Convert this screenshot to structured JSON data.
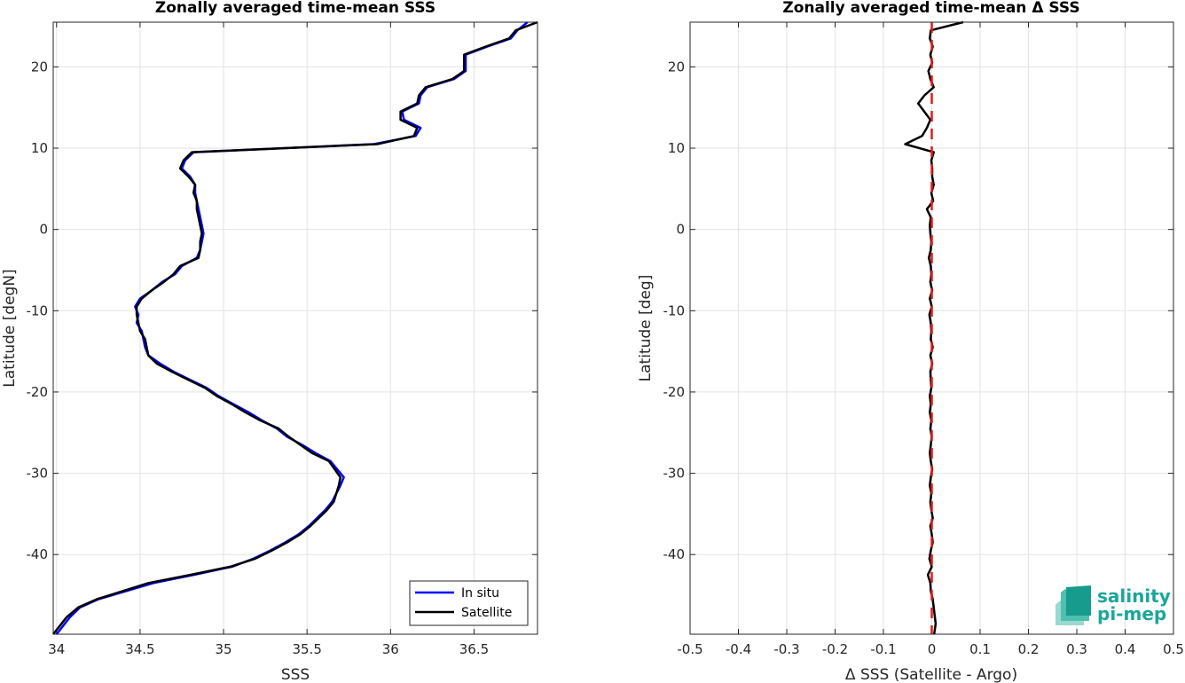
{
  "chart_data": [
    {
      "type": "line",
      "title": "Zonally averaged time-mean SSS",
      "xlabel": "SSS",
      "ylabel": "Latitude [degN]",
      "xlim": [
        33.98,
        36.88
      ],
      "ylim": [
        -49.8,
        25.5
      ],
      "xticks": [
        "34",
        "34.5",
        "35",
        "35.5",
        "36",
        "36.5"
      ],
      "xtick_values": [
        34,
        34.5,
        35,
        35.5,
        36,
        36.5
      ],
      "yticks": [
        "20",
        "10",
        "0",
        "-10",
        "-20",
        "-30",
        "-40"
      ],
      "ytick_values": [
        20,
        10,
        0,
        -10,
        -20,
        -30,
        -40
      ],
      "grid": true,
      "legend": {
        "position": "bottom-right",
        "entries": [
          "In situ",
          "Satellite"
        ]
      },
      "series": [
        {
          "name": "In situ",
          "color": "#0000ff",
          "points": [
            [
              34.0,
              -49.8
            ],
            [
              34.08,
              -47.7
            ],
            [
              34.14,
              -46.5
            ],
            [
              34.25,
              -45.5
            ],
            [
              34.58,
              -43.5
            ],
            [
              34.82,
              -42.5
            ],
            [
              35.05,
              -41.5
            ],
            [
              35.18,
              -40.5
            ],
            [
              35.28,
              -39.5
            ],
            [
              35.37,
              -38.5
            ],
            [
              35.45,
              -37.5
            ],
            [
              35.51,
              -36.5
            ],
            [
              35.56,
              -35.5
            ],
            [
              35.61,
              -34.5
            ],
            [
              35.65,
              -33.5
            ],
            [
              35.7,
              -31.5
            ],
            [
              35.72,
              -30.5
            ],
            [
              35.64,
              -28.5
            ],
            [
              35.55,
              -27.5
            ],
            [
              35.47,
              -26.5
            ],
            [
              35.38,
              -25.5
            ],
            [
              35.32,
              -24.5
            ],
            [
              35.23,
              -23.5
            ],
            [
              35.15,
              -22.5
            ],
            [
              35.06,
              -21.5
            ],
            [
              34.97,
              -20.5
            ],
            [
              34.9,
              -19.5
            ],
            [
              34.8,
              -18.5
            ],
            [
              34.7,
              -17.5
            ],
            [
              34.62,
              -16.5
            ],
            [
              34.55,
              -15.5
            ],
            [
              34.53,
              -14.5
            ],
            [
              34.52,
              -13.5
            ],
            [
              34.51,
              -12.5
            ],
            [
              34.48,
              -11.5
            ],
            [
              34.49,
              -10.5
            ],
            [
              34.47,
              -9.5
            ],
            [
              34.5,
              -8.5
            ],
            [
              34.57,
              -7.5
            ],
            [
              34.63,
              -6.5
            ],
            [
              34.71,
              -5.5
            ],
            [
              34.75,
              -4.5
            ],
            [
              34.84,
              -3.5
            ],
            [
              34.86,
              -2.5
            ],
            [
              34.87,
              -1.5
            ],
            [
              34.88,
              -0.5
            ],
            [
              34.87,
              0.5
            ],
            [
              34.86,
              1.5
            ],
            [
              34.85,
              2.5
            ],
            [
              34.84,
              3.5
            ],
            [
              34.83,
              4.5
            ],
            [
              34.83,
              5.5
            ],
            [
              34.8,
              6.5
            ],
            [
              34.75,
              7.5
            ],
            [
              34.77,
              8.5
            ],
            [
              34.82,
              9.5
            ],
            [
              35.9,
              10.5
            ],
            [
              36.15,
              11.5
            ],
            [
              36.18,
              12.5
            ],
            [
              36.08,
              13.5
            ],
            [
              36.07,
              14.5
            ],
            [
              36.17,
              15.5
            ],
            [
              36.18,
              16.5
            ],
            [
              36.22,
              17.5
            ],
            [
              36.38,
              18.5
            ],
            [
              36.45,
              19.5
            ],
            [
              36.45,
              21.5
            ],
            [
              36.58,
              22.5
            ],
            [
              36.72,
              23.5
            ],
            [
              36.76,
              24.5
            ],
            [
              36.82,
              25.5
            ]
          ]
        },
        {
          "name": "Satellite",
          "color": "#000000",
          "points": [
            [
              33.98,
              -49.8
            ],
            [
              34.06,
              -47.7
            ],
            [
              34.13,
              -46.5
            ],
            [
              34.24,
              -45.5
            ],
            [
              34.55,
              -43.5
            ],
            [
              34.8,
              -42.5
            ],
            [
              35.04,
              -41.5
            ],
            [
              35.19,
              -40.5
            ],
            [
              35.29,
              -39.5
            ],
            [
              35.38,
              -38.5
            ],
            [
              35.46,
              -37.5
            ],
            [
              35.52,
              -36.5
            ],
            [
              35.57,
              -35.5
            ],
            [
              35.62,
              -34.5
            ],
            [
              35.66,
              -33.5
            ],
            [
              35.69,
              -31.5
            ],
            [
              35.7,
              -30.5
            ],
            [
              35.63,
              -28.5
            ],
            [
              35.53,
              -27.5
            ],
            [
              35.46,
              -26.5
            ],
            [
              35.39,
              -25.5
            ],
            [
              35.33,
              -24.5
            ],
            [
              35.22,
              -23.5
            ],
            [
              35.13,
              -22.5
            ],
            [
              35.05,
              -21.5
            ],
            [
              34.96,
              -20.5
            ],
            [
              34.89,
              -19.5
            ],
            [
              34.79,
              -18.5
            ],
            [
              34.69,
              -17.5
            ],
            [
              34.6,
              -16.5
            ],
            [
              34.55,
              -15.5
            ],
            [
              34.54,
              -14.5
            ],
            [
              34.53,
              -13.5
            ],
            [
              34.5,
              -12.5
            ],
            [
              34.49,
              -11.5
            ],
            [
              34.48,
              -10.5
            ],
            [
              34.48,
              -9.5
            ],
            [
              34.51,
              -8.5
            ],
            [
              34.57,
              -7.5
            ],
            [
              34.64,
              -6.5
            ],
            [
              34.7,
              -5.5
            ],
            [
              34.74,
              -4.5
            ],
            [
              34.85,
              -3.5
            ],
            [
              34.86,
              -2.5
            ],
            [
              34.86,
              -1.5
            ],
            [
              34.87,
              -0.5
            ],
            [
              34.86,
              0.5
            ],
            [
              34.85,
              1.5
            ],
            [
              34.84,
              2.5
            ],
            [
              34.84,
              3.5
            ],
            [
              34.82,
              4.5
            ],
            [
              34.83,
              5.5
            ],
            [
              34.79,
              6.5
            ],
            [
              34.74,
              7.5
            ],
            [
              34.76,
              8.5
            ],
            [
              34.81,
              9.5
            ],
            [
              35.92,
              10.5
            ],
            [
              36.14,
              11.5
            ],
            [
              36.16,
              12.5
            ],
            [
              36.06,
              13.5
            ],
            [
              36.06,
              14.5
            ],
            [
              36.16,
              15.5
            ],
            [
              36.17,
              16.5
            ],
            [
              36.21,
              17.5
            ],
            [
              36.37,
              18.5
            ],
            [
              36.44,
              19.5
            ],
            [
              36.44,
              21.5
            ],
            [
              36.57,
              22.5
            ],
            [
              36.71,
              23.5
            ],
            [
              36.75,
              24.5
            ],
            [
              36.88,
              25.5
            ]
          ]
        }
      ]
    },
    {
      "type": "line",
      "title": "Zonally averaged time-mean Δ SSS",
      "xlabel": "Δ SSS (Satellite - Argo)",
      "ylabel": "Latitude [deg]",
      "xlim": [
        -0.5,
        0.5
      ],
      "ylim": [
        -49.8,
        25.5
      ],
      "xticks": [
        "-0.5",
        "-0.4",
        "-0.3",
        "-0.2",
        "-0.1",
        "0",
        "0.1",
        "0.2",
        "0.3",
        "0.4",
        "0.5"
      ],
      "xtick_values": [
        -0.5,
        -0.4,
        -0.3,
        -0.2,
        -0.1,
        0,
        0.1,
        0.2,
        0.3,
        0.4,
        0.5
      ],
      "yticks": [
        "20",
        "10",
        "0",
        "-10",
        "-20",
        "-30",
        "-40"
      ],
      "ytick_values": [
        20,
        10,
        0,
        -10,
        -20,
        -30,
        -40
      ],
      "grid": true,
      "reference_line": {
        "x": 0,
        "color": "#e41a1c",
        "style": "dashed"
      },
      "series": [
        {
          "color": "#000000",
          "points": [
            [
              0.005,
              -49.8
            ],
            [
              0.008,
              -48.5
            ],
            [
              0.006,
              -47.5
            ],
            [
              0.004,
              -46.5
            ],
            [
              0.002,
              -45.5
            ],
            [
              -0.002,
              -44.5
            ],
            [
              -0.003,
              -43.5
            ],
            [
              -0.008,
              -42.5
            ],
            [
              0.0,
              -41.5
            ],
            [
              -0.005,
              -40.5
            ],
            [
              -0.002,
              -39.5
            ],
            [
              0.002,
              -38.5
            ],
            [
              0.0,
              -37.5
            ],
            [
              -0.003,
              -36.5
            ],
            [
              0.002,
              -35.5
            ],
            [
              -0.001,
              -34.5
            ],
            [
              -0.003,
              -33.5
            ],
            [
              -0.001,
              -32.5
            ],
            [
              -0.004,
              -31.5
            ],
            [
              -0.002,
              -30.5
            ],
            [
              0.001,
              -29.5
            ],
            [
              -0.002,
              -28.5
            ],
            [
              -0.004,
              -27.5
            ],
            [
              -0.002,
              -26.5
            ],
            [
              0.0,
              -25.5
            ],
            [
              -0.003,
              -24.5
            ],
            [
              -0.001,
              -23.5
            ],
            [
              -0.004,
              -22.5
            ],
            [
              -0.002,
              -21.5
            ],
            [
              -0.004,
              -20.5
            ],
            [
              -0.001,
              -19.5
            ],
            [
              -0.002,
              -18.5
            ],
            [
              -0.003,
              -17.5
            ],
            [
              0.001,
              -16.5
            ],
            [
              -0.003,
              -15.5
            ],
            [
              0.002,
              -14.5
            ],
            [
              -0.002,
              -13.5
            ],
            [
              -0.001,
              -12.5
            ],
            [
              -0.002,
              -11.5
            ],
            [
              -0.005,
              -10.5
            ],
            [
              0.0,
              -9.5
            ],
            [
              -0.004,
              -8.5
            ],
            [
              0.001,
              -7.5
            ],
            [
              -0.003,
              -6.5
            ],
            [
              -0.001,
              -5.5
            ],
            [
              -0.002,
              -4.5
            ],
            [
              -0.006,
              -3.5
            ],
            [
              -0.002,
              -2.5
            ],
            [
              -0.001,
              -1.5
            ],
            [
              -0.003,
              -0.5
            ],
            [
              -0.004,
              0.5
            ],
            [
              -0.002,
              1.5
            ],
            [
              -0.01,
              2.5
            ],
            [
              0.003,
              3.5
            ],
            [
              -0.001,
              4.5
            ],
            [
              0.004,
              5.5
            ],
            [
              0.001,
              6.5
            ],
            [
              0.001,
              7.5
            ],
            [
              -0.001,
              8.5
            ],
            [
              0.004,
              9.5
            ],
            [
              -0.055,
              10.5
            ],
            [
              -0.02,
              11.5
            ],
            [
              -0.01,
              12.5
            ],
            [
              -0.003,
              13.5
            ],
            [
              -0.028,
              15.5
            ],
            [
              -0.015,
              16.5
            ],
            [
              0.004,
              17.5
            ],
            [
              -0.003,
              18.5
            ],
            [
              -0.007,
              19.5
            ],
            [
              0.001,
              20.5
            ],
            [
              -0.003,
              21.5
            ],
            [
              0.002,
              22.5
            ],
            [
              -0.004,
              23.5
            ],
            [
              -0.002,
              24.5
            ],
            [
              0.065,
              25.5
            ]
          ]
        }
      ]
    }
  ],
  "logo": {
    "line1": "salinity",
    "line2": "pi-mep"
  }
}
